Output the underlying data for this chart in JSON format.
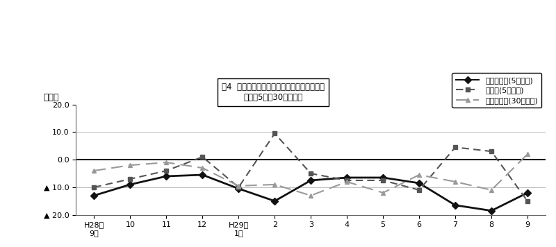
{
  "title_line1": "围4  所定外労働時間の推移（対前年同月比）",
  "title_line2": "－規横5人・30人以上－",
  "ylabel": "（％）",
  "x_labels": [
    "H28年\n9月",
    "10",
    "11",
    "12",
    "H29年\n1月",
    "2",
    "3",
    "4",
    "5",
    "6",
    "7",
    "8",
    "9"
  ],
  "ylim": [
    -20.0,
    20.0
  ],
  "yticks": [
    -20.0,
    -10.0,
    0.0,
    10.0,
    20.0
  ],
  "ytick_labels": [
    "▲ 20.0",
    "▲ 10.0",
    "0.0",
    "10.0",
    "20.0"
  ],
  "series": [
    {
      "label": "調査産業計(5人以上)",
      "values": [
        -13.0,
        -9.0,
        -6.0,
        -5.5,
        -10.5,
        -15.0,
        -7.5,
        -6.5,
        -6.5,
        -8.5,
        -16.5,
        -18.5,
        -12.0
      ],
      "color": "#111111",
      "linestyle": "-",
      "marker": "D",
      "linewidth": 2.0,
      "markersize": 5
    },
    {
      "label": "製造業(5人以上)",
      "values": [
        -10.0,
        -7.0,
        -4.0,
        1.0,
        -10.0,
        9.5,
        -5.0,
        -7.5,
        -7.5,
        -11.0,
        4.5,
        3.0,
        -15.0
      ],
      "color": "#555555",
      "linestyle": "--",
      "marker": "s",
      "linewidth": 1.5,
      "markersize": 5,
      "dashes": [
        5,
        3
      ]
    },
    {
      "label": "調査産業計(30人以上)",
      "values": [
        -4.0,
        -2.0,
        -1.0,
        -3.0,
        -9.5,
        -9.0,
        -13.0,
        -8.0,
        -12.0,
        -5.5,
        -8.0,
        -11.0,
        2.0
      ],
      "color": "#999999",
      "linestyle": "--",
      "marker": "^",
      "linewidth": 1.5,
      "markersize": 5,
      "dashes": [
        8,
        4
      ]
    }
  ],
  "background_color": "#ffffff",
  "grid_color": "#bbbbbb",
  "zero_line_color": "#000000"
}
